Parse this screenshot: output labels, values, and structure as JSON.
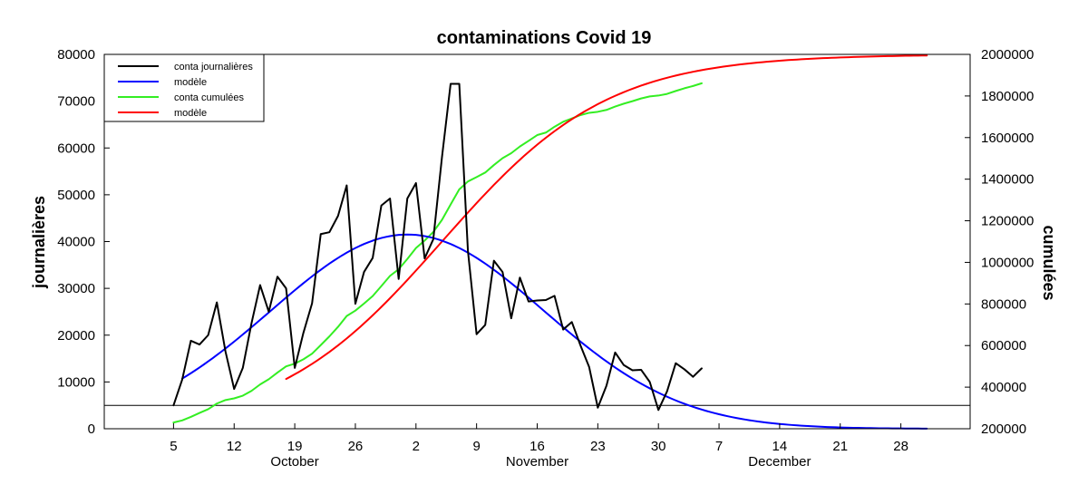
{
  "chart_data": {
    "type": "line",
    "title": "contaminations Covid 19",
    "ylabel_left": "journalières",
    "ylabel_right": "cumulées",
    "x_axis": {
      "ticks": [
        {
          "date": "2020-10-05",
          "label": "5"
        },
        {
          "date": "2020-10-12",
          "label": "12"
        },
        {
          "date": "2020-10-19",
          "label": "19"
        },
        {
          "date": "2020-10-26",
          "label": "26"
        },
        {
          "date": "2020-11-02",
          "label": "2"
        },
        {
          "date": "2020-11-09",
          "label": "9"
        },
        {
          "date": "2020-11-16",
          "label": "16"
        },
        {
          "date": "2020-11-23",
          "label": "23"
        },
        {
          "date": "2020-11-30",
          "label": "30"
        },
        {
          "date": "2020-12-07",
          "label": "7"
        },
        {
          "date": "2020-12-14",
          "label": "14"
        },
        {
          "date": "2020-12-21",
          "label": "21"
        },
        {
          "date": "2020-12-28",
          "label": "28"
        }
      ],
      "months": [
        {
          "label": "October",
          "date": "2020-10-19"
        },
        {
          "label": "November",
          "date": "2020-11-16"
        },
        {
          "label": "December",
          "date": "2020-12-14"
        }
      ],
      "range": [
        "2020-09-27",
        "2021-01-05"
      ]
    },
    "y_left": {
      "range": [
        0,
        80000
      ],
      "ticks": [
        0,
        10000,
        20000,
        30000,
        40000,
        50000,
        60000,
        70000,
        80000
      ],
      "tick_labels": [
        "0",
        "10000",
        "20000",
        "30000",
        "40000",
        "50000",
        "60000",
        "70000",
        "80000"
      ]
    },
    "y_right": {
      "range": [
        200000,
        2000000
      ],
      "ticks": [
        200000,
        400000,
        600000,
        800000,
        1000000,
        1200000,
        1400000,
        1600000,
        1800000,
        2000000
      ],
      "tick_labels": [
        "200000",
        "400000",
        "600000",
        "800000",
        "1000000",
        "1200000",
        "1400000",
        "1600000",
        "1800000",
        "2000000"
      ]
    },
    "reference_line": {
      "axis": "left",
      "value": 5000
    },
    "legend": {
      "position": "top-left",
      "entries": [
        {
          "label": "conta journalières",
          "color": "#000000"
        },
        {
          "label": "modèle",
          "color": "#0000ff"
        },
        {
          "label": "conta cumulées",
          "color": "#33ee22"
        },
        {
          "label": "modèle",
          "color": "#ff0000"
        }
      ]
    },
    "series": [
      {
        "name": "conta journalières",
        "axis": "left",
        "color": "#000000",
        "points": [
          [
            "2020-10-05",
            5000
          ],
          [
            "2020-10-06",
            10500
          ],
          [
            "2020-10-07",
            18800
          ],
          [
            "2020-10-08",
            18000
          ],
          [
            "2020-10-09",
            20000
          ],
          [
            "2020-10-10",
            27000
          ],
          [
            "2020-10-11",
            16500
          ],
          [
            "2020-10-12",
            8500
          ],
          [
            "2020-10-13",
            13000
          ],
          [
            "2020-10-14",
            22500
          ],
          [
            "2020-10-15",
            30700
          ],
          [
            "2020-10-16",
            25000
          ],
          [
            "2020-10-17",
            32500
          ],
          [
            "2020-10-18",
            30000
          ],
          [
            "2020-10-19",
            13000
          ],
          [
            "2020-10-20",
            20500
          ],
          [
            "2020-10-21",
            26800
          ],
          [
            "2020-10-22",
            41600
          ],
          [
            "2020-10-23",
            42000
          ],
          [
            "2020-10-24",
            45500
          ],
          [
            "2020-10-25",
            52000
          ],
          [
            "2020-10-26",
            26700
          ],
          [
            "2020-10-27",
            33500
          ],
          [
            "2020-10-28",
            36500
          ],
          [
            "2020-10-29",
            47700
          ],
          [
            "2020-10-30",
            49200
          ],
          [
            "2020-10-31",
            32000
          ],
          [
            "2020-11-01",
            49200
          ],
          [
            "2020-11-02",
            52500
          ],
          [
            "2020-11-03",
            36400
          ],
          [
            "2020-11-04",
            40500
          ],
          [
            "2020-11-05",
            58000
          ],
          [
            "2020-11-06",
            73700
          ],
          [
            "2020-11-07",
            73700
          ],
          [
            "2020-11-08",
            38000
          ],
          [
            "2020-11-09",
            20200
          ],
          [
            "2020-11-10",
            22200
          ],
          [
            "2020-11-11",
            35900
          ],
          [
            "2020-11-12",
            33500
          ],
          [
            "2020-11-13",
            23600
          ],
          [
            "2020-11-14",
            32300
          ],
          [
            "2020-11-15",
            27200
          ],
          [
            "2020-11-16",
            27400
          ],
          [
            "2020-11-17",
            27500
          ],
          [
            "2020-11-18",
            28400
          ],
          [
            "2020-11-19",
            21200
          ],
          [
            "2020-11-20",
            22800
          ],
          [
            "2020-11-21",
            17800
          ],
          [
            "2020-11-22",
            13200
          ],
          [
            "2020-11-23",
            4500
          ],
          [
            "2020-11-24",
            9200
          ],
          [
            "2020-11-25",
            16300
          ],
          [
            "2020-11-26",
            13600
          ],
          [
            "2020-11-27",
            12500
          ],
          [
            "2020-11-28",
            12600
          ],
          [
            "2020-11-29",
            10000
          ],
          [
            "2020-11-30",
            4000
          ],
          [
            "2020-12-01",
            8000
          ],
          [
            "2020-12-02",
            14000
          ],
          [
            "2020-12-03",
            12700
          ],
          [
            "2020-12-04",
            11100
          ],
          [
            "2020-12-05",
            12900
          ]
        ]
      },
      {
        "name": "modèle",
        "axis": "left",
        "color": "#0000ff",
        "model": {
          "kind": "gaussian",
          "peak": 41500,
          "peak_date": "2020-11-01",
          "sigma_days": 15.8,
          "from": "2020-10-06",
          "to": "2020-12-31"
        }
      },
      {
        "name": "conta cumulées",
        "axis": "right",
        "color": "#33ee22",
        "points": [
          [
            "2020-10-05",
            230000
          ],
          [
            "2020-10-06",
            240000
          ],
          [
            "2020-10-07",
            257000
          ],
          [
            "2020-10-08",
            276000
          ],
          [
            "2020-10-09",
            294000
          ],
          [
            "2020-10-10",
            321000
          ],
          [
            "2020-10-11",
            338000
          ],
          [
            "2020-10-12",
            346000
          ],
          [
            "2020-10-13",
            359000
          ],
          [
            "2020-10-14",
            382000
          ],
          [
            "2020-10-15",
            413000
          ],
          [
            "2020-10-16",
            438000
          ],
          [
            "2020-10-17",
            470000
          ],
          [
            "2020-10-18",
            500000
          ],
          [
            "2020-10-19",
            513000
          ],
          [
            "2020-10-20",
            534000
          ],
          [
            "2020-10-21",
            561000
          ],
          [
            "2020-10-22",
            602000
          ],
          [
            "2020-10-23",
            644000
          ],
          [
            "2020-10-24",
            690000
          ],
          [
            "2020-10-25",
            742000
          ],
          [
            "2020-10-26",
            768000
          ],
          [
            "2020-10-27",
            802000
          ],
          [
            "2020-10-28",
            838000
          ],
          [
            "2020-10-29",
            886000
          ],
          [
            "2020-10-30",
            935000
          ],
          [
            "2020-10-31",
            967000
          ],
          [
            "2020-11-01",
            1016000
          ],
          [
            "2020-11-02",
            1069000
          ],
          [
            "2020-11-03",
            1105000
          ],
          [
            "2020-11-04",
            1146000
          ],
          [
            "2020-11-05",
            1204000
          ],
          [
            "2020-11-06",
            1278000
          ],
          [
            "2020-11-07",
            1351000
          ],
          [
            "2020-11-08",
            1389000
          ],
          [
            "2020-11-09",
            1410000
          ],
          [
            "2020-11-10",
            1432000
          ],
          [
            "2020-11-11",
            1468000
          ],
          [
            "2020-11-12",
            1501000
          ],
          [
            "2020-11-13",
            1525000
          ],
          [
            "2020-11-14",
            1557000
          ],
          [
            "2020-11-15",
            1584000
          ],
          [
            "2020-11-16",
            1612000
          ],
          [
            "2020-11-17",
            1624000
          ],
          [
            "2020-11-18",
            1652000
          ],
          [
            "2020-11-19",
            1676000
          ],
          [
            "2020-11-20",
            1692000
          ],
          [
            "2020-11-21",
            1708000
          ],
          [
            "2020-11-22",
            1719000
          ],
          [
            "2020-11-23",
            1724000
          ],
          [
            "2020-11-24",
            1733000
          ],
          [
            "2020-11-25",
            1749000
          ],
          [
            "2020-11-26",
            1763000
          ],
          [
            "2020-11-27",
            1775000
          ],
          [
            "2020-11-28",
            1788000
          ],
          [
            "2020-11-29",
            1798000
          ],
          [
            "2020-11-30",
            1802000
          ],
          [
            "2020-12-01",
            1810000
          ],
          [
            "2020-12-02",
            1824000
          ],
          [
            "2020-12-03",
            1837000
          ],
          [
            "2020-12-04",
            1848000
          ],
          [
            "2020-12-05",
            1861000
          ]
        ]
      },
      {
        "name": "modèle",
        "axis": "right",
        "color": "#ff0000",
        "model": {
          "kind": "logistic",
          "base": 200000,
          "asymptote": 2000000,
          "midpoint_date": "2020-11-05",
          "scale_days": 9.6,
          "from": "2020-10-18",
          "to": "2020-12-31"
        }
      }
    ]
  }
}
